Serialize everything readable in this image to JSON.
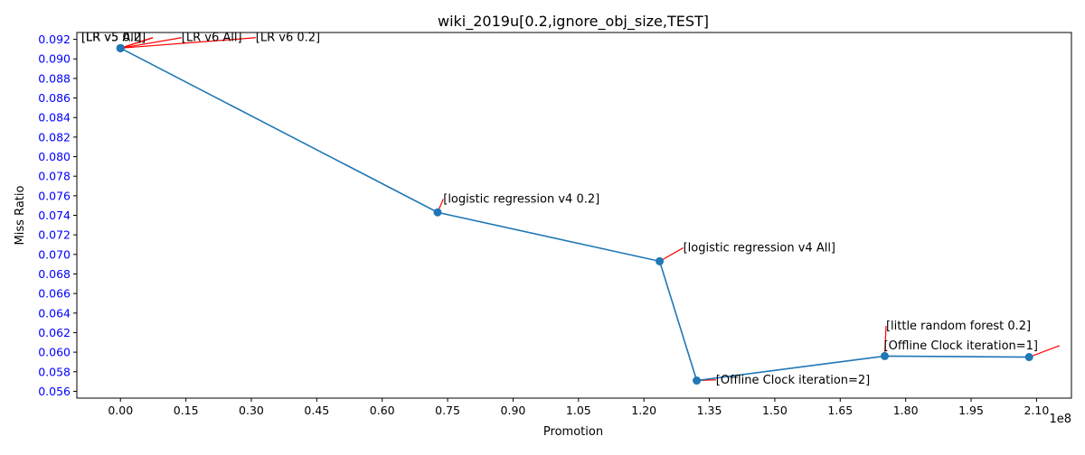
{
  "chart_data": {
    "type": "line",
    "title": "wiki_2019u[0.2,ignore_obj_size,TEST]",
    "xlabel": "Promotion",
    "ylabel": "Miss Ratio",
    "x_offset_label": "1e8",
    "xlim": [
      -0.1,
      2.18
    ],
    "ylim": [
      0.0553,
      0.0927
    ],
    "x_ticks": [
      0.0,
      0.15,
      0.3,
      0.45,
      0.6,
      0.75,
      0.9,
      1.05,
      1.2,
      1.35,
      1.5,
      1.65,
      1.8,
      1.95,
      2.1
    ],
    "x_tick_labels": [
      "0.00",
      "0.15",
      "0.30",
      "0.45",
      "0.60",
      "0.75",
      "0.90",
      "1.05",
      "1.20",
      "1.35",
      "1.50",
      "1.65",
      "1.80",
      "1.95",
      "2.10"
    ],
    "y_ticks": [
      0.056,
      0.058,
      0.06,
      0.062,
      0.064,
      0.066,
      0.068,
      0.07,
      0.072,
      0.074,
      0.076,
      0.078,
      0.08,
      0.082,
      0.084,
      0.086,
      0.088,
      0.09,
      0.092
    ],
    "y_tick_labels": [
      "0.056",
      "0.058",
      "0.060",
      "0.062",
      "0.064",
      "0.066",
      "0.068",
      "0.070",
      "0.072",
      "0.074",
      "0.076",
      "0.078",
      "0.080",
      "0.082",
      "0.084",
      "0.086",
      "0.088",
      "0.090",
      "0.092"
    ],
    "series": [
      {
        "color": "#1f77b4",
        "x": [
          0.0,
          0.0,
          0.0,
          0.0,
          0.727,
          1.236,
          1.321,
          1.752,
          2.083
        ],
        "y": [
          0.0911,
          0.0911,
          0.0911,
          0.0911,
          0.0743,
          0.0693,
          0.0571,
          0.0596,
          0.0595
        ]
      }
    ],
    "annotations": [
      {
        "text": "[LR v5 All]",
        "x": 0.0,
        "y": 0.0911,
        "text_x": -0.09,
        "text_y": 0.0918
      },
      {
        "text": "[LR v5 0.2]",
        "x": 0.0,
        "y": 0.0911,
        "text_x": -0.09,
        "text_y": 0.0918
      },
      {
        "text": "[LR v6 All]",
        "x": 0.0,
        "y": 0.0911,
        "text_x": 0.14,
        "text_y": 0.0918
      },
      {
        "text": "[LR v6 0.2]",
        "x": 0.0,
        "y": 0.0911,
        "text_x": 0.31,
        "text_y": 0.0918
      },
      {
        "text": "[logistic regression v4 0.2]",
        "x": 0.727,
        "y": 0.0743,
        "text_x": 0.74,
        "text_y": 0.0753
      },
      {
        "text": "[logistic regression v4 All]",
        "x": 1.236,
        "y": 0.0693,
        "text_x": 1.29,
        "text_y": 0.0703
      },
      {
        "text": "[Offline Clock iteration=2]",
        "x": 1.321,
        "y": 0.0571,
        "text_x": 1.365,
        "text_y": 0.0568
      },
      {
        "text": "[little random forest 0.2]",
        "x": 1.752,
        "y": 0.0596,
        "text_x": 1.755,
        "text_y": 0.0623
      },
      {
        "text": "[Offline Clock iteration=1]",
        "x": 2.083,
        "y": 0.0595,
        "text_x": 1.75,
        "text_y": 0.0603
      }
    ],
    "colors": {
      "line": "#1f77b4",
      "annotation_arrow": "#ff0000",
      "y_ticks": "#0000ff",
      "text": "#000000"
    }
  }
}
